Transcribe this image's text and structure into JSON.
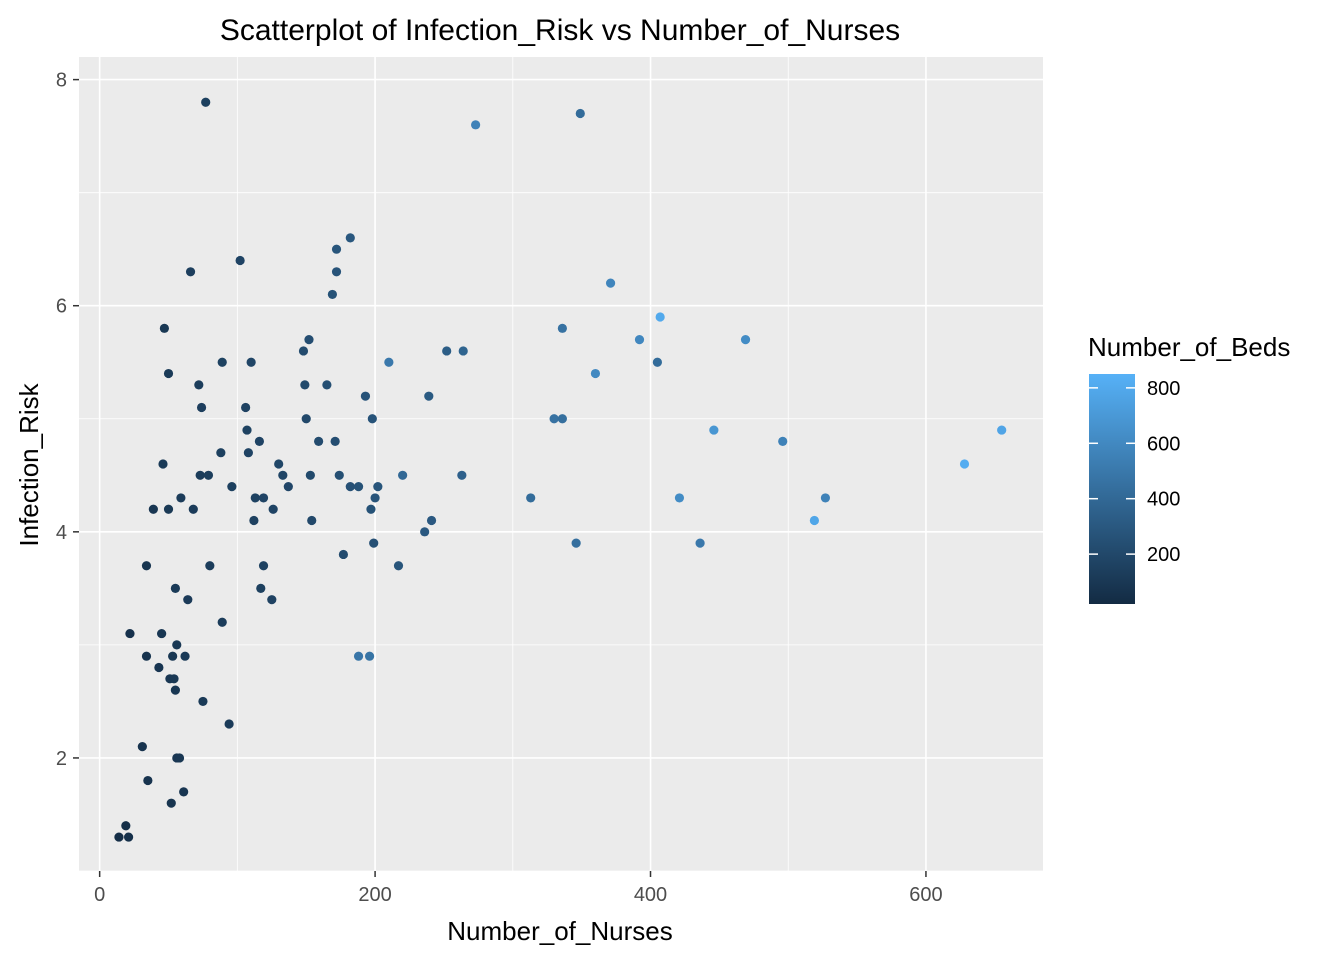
{
  "chart_data": {
    "type": "scatter",
    "title": "Scatterplot of Infection_Risk vs Number_of_Nurses",
    "xlabel": "Number_of_Nurses",
    "ylabel": "Infection_Risk",
    "xlim": [
      -15,
      685
    ],
    "ylim": [
      1.0,
      8.2
    ],
    "x_ticks": [
      0,
      200,
      400,
      600
    ],
    "y_ticks": [
      2,
      4,
      6,
      8
    ],
    "grid": true,
    "panel_background": "#EBEBEB",
    "legend": {
      "title": "Number_of_Beds",
      "placement": "right",
      "ticks": [
        200,
        400,
        600,
        800
      ],
      "range": [
        20,
        850
      ],
      "color_low": "#132B43",
      "color_high": "#56B1F7"
    },
    "points": [
      {
        "x": 14,
        "y": 1.3,
        "beds": 40
      },
      {
        "x": 19,
        "y": 1.4,
        "beds": 45
      },
      {
        "x": 21,
        "y": 1.3,
        "beds": 50
      },
      {
        "x": 22,
        "y": 3.1,
        "beds": 60
      },
      {
        "x": 31,
        "y": 2.1,
        "beds": 70
      },
      {
        "x": 34,
        "y": 3.7,
        "beds": 80
      },
      {
        "x": 34,
        "y": 2.9,
        "beds": 75
      },
      {
        "x": 35,
        "y": 1.8,
        "beds": 70
      },
      {
        "x": 39,
        "y": 4.2,
        "beds": 90
      },
      {
        "x": 43,
        "y": 2.8,
        "beds": 85
      },
      {
        "x": 45,
        "y": 3.1,
        "beds": 95
      },
      {
        "x": 46,
        "y": 4.6,
        "beds": 110
      },
      {
        "x": 47,
        "y": 5.8,
        "beds": 100
      },
      {
        "x": 50,
        "y": 4.2,
        "beds": 105
      },
      {
        "x": 50,
        "y": 5.4,
        "beds": 110
      },
      {
        "x": 51,
        "y": 2.7,
        "beds": 90
      },
      {
        "x": 52,
        "y": 1.6,
        "beds": 80
      },
      {
        "x": 53,
        "y": 2.9,
        "beds": 95
      },
      {
        "x": 54,
        "y": 2.7,
        "beds": 100
      },
      {
        "x": 55,
        "y": 2.6,
        "beds": 95
      },
      {
        "x": 55,
        "y": 3.5,
        "beds": 110
      },
      {
        "x": 56,
        "y": 3.0,
        "beds": 100
      },
      {
        "x": 56,
        "y": 2.0,
        "beds": 90
      },
      {
        "x": 58,
        "y": 2.0,
        "beds": 95
      },
      {
        "x": 59,
        "y": 4.3,
        "beds": 120
      },
      {
        "x": 61,
        "y": 1.7,
        "beds": 85
      },
      {
        "x": 62,
        "y": 2.9,
        "beds": 110
      },
      {
        "x": 64,
        "y": 3.4,
        "beds": 115
      },
      {
        "x": 66,
        "y": 6.3,
        "beds": 140
      },
      {
        "x": 68,
        "y": 4.2,
        "beds": 120
      },
      {
        "x": 72,
        "y": 5.3,
        "beds": 130
      },
      {
        "x": 73,
        "y": 4.5,
        "beds": 125
      },
      {
        "x": 74,
        "y": 5.1,
        "beds": 140
      },
      {
        "x": 75,
        "y": 2.5,
        "beds": 110
      },
      {
        "x": 77,
        "y": 7.8,
        "beds": 150
      },
      {
        "x": 79,
        "y": 4.5,
        "beds": 135
      },
      {
        "x": 80,
        "y": 3.7,
        "beds": 130
      },
      {
        "x": 88,
        "y": 4.7,
        "beds": 150
      },
      {
        "x": 89,
        "y": 3.2,
        "beds": 125
      },
      {
        "x": 89,
        "y": 5.5,
        "beds": 160
      },
      {
        "x": 94,
        "y": 2.3,
        "beds": 120
      },
      {
        "x": 96,
        "y": 4.4,
        "beds": 150
      },
      {
        "x": 102,
        "y": 6.4,
        "beds": 170
      },
      {
        "x": 106,
        "y": 5.1,
        "beds": 165
      },
      {
        "x": 107,
        "y": 4.9,
        "beds": 160
      },
      {
        "x": 108,
        "y": 4.7,
        "beds": 170
      },
      {
        "x": 110,
        "y": 5.5,
        "beds": 180
      },
      {
        "x": 112,
        "y": 4.1,
        "beds": 155
      },
      {
        "x": 113,
        "y": 4.3,
        "beds": 160
      },
      {
        "x": 116,
        "y": 4.8,
        "beds": 170
      },
      {
        "x": 117,
        "y": 3.5,
        "beds": 150
      },
      {
        "x": 119,
        "y": 3.7,
        "beds": 160
      },
      {
        "x": 119,
        "y": 4.3,
        "beds": 175
      },
      {
        "x": 125,
        "y": 3.4,
        "beds": 165
      },
      {
        "x": 126,
        "y": 4.2,
        "beds": 170
      },
      {
        "x": 130,
        "y": 4.6,
        "beds": 185
      },
      {
        "x": 133,
        "y": 4.5,
        "beds": 180
      },
      {
        "x": 137,
        "y": 4.4,
        "beds": 190
      },
      {
        "x": 148,
        "y": 5.6,
        "beds": 220
      },
      {
        "x": 149,
        "y": 5.3,
        "beds": 210
      },
      {
        "x": 150,
        "y": 5.0,
        "beds": 200
      },
      {
        "x": 152,
        "y": 5.7,
        "beds": 230
      },
      {
        "x": 153,
        "y": 4.5,
        "beds": 210
      },
      {
        "x": 154,
        "y": 4.1,
        "beds": 200
      },
      {
        "x": 159,
        "y": 4.8,
        "beds": 220
      },
      {
        "x": 165,
        "y": 5.3,
        "beds": 240
      },
      {
        "x": 169,
        "y": 6.1,
        "beds": 260
      },
      {
        "x": 171,
        "y": 4.8,
        "beds": 230
      },
      {
        "x": 172,
        "y": 6.3,
        "beds": 270
      },
      {
        "x": 172,
        "y": 6.5,
        "beds": 280
      },
      {
        "x": 174,
        "y": 4.5,
        "beds": 240
      },
      {
        "x": 177,
        "y": 3.8,
        "beds": 220
      },
      {
        "x": 182,
        "y": 6.6,
        "beds": 290
      },
      {
        "x": 182,
        "y": 4.4,
        "beds": 250
      },
      {
        "x": 188,
        "y": 4.4,
        "beds": 260
      },
      {
        "x": 188,
        "y": 2.9,
        "beds": 480
      },
      {
        "x": 193,
        "y": 5.2,
        "beds": 270
      },
      {
        "x": 196,
        "y": 2.9,
        "beds": 470
      },
      {
        "x": 197,
        "y": 4.2,
        "beds": 260
      },
      {
        "x": 198,
        "y": 5.0,
        "beds": 270
      },
      {
        "x": 199,
        "y": 3.9,
        "beds": 250
      },
      {
        "x": 200,
        "y": 4.3,
        "beds": 270
      },
      {
        "x": 202,
        "y": 4.4,
        "beds": 280
      },
      {
        "x": 210,
        "y": 5.5,
        "beds": 500
      },
      {
        "x": 217,
        "y": 3.7,
        "beds": 280
      },
      {
        "x": 220,
        "y": 4.5,
        "beds": 400
      },
      {
        "x": 236,
        "y": 4.0,
        "beds": 300
      },
      {
        "x": 239,
        "y": 5.2,
        "beds": 310
      },
      {
        "x": 241,
        "y": 4.1,
        "beds": 300
      },
      {
        "x": 252,
        "y": 5.6,
        "beds": 330
      },
      {
        "x": 263,
        "y": 4.5,
        "beds": 350
      },
      {
        "x": 264,
        "y": 5.6,
        "beds": 370
      },
      {
        "x": 273,
        "y": 7.6,
        "beds": 560
      },
      {
        "x": 313,
        "y": 4.3,
        "beds": 420
      },
      {
        "x": 330,
        "y": 5.0,
        "beds": 460
      },
      {
        "x": 336,
        "y": 5.0,
        "beds": 440
      },
      {
        "x": 336,
        "y": 5.8,
        "beds": 460
      },
      {
        "x": 346,
        "y": 3.9,
        "beds": 440
      },
      {
        "x": 349,
        "y": 7.7,
        "beds": 420
      },
      {
        "x": 360,
        "y": 5.4,
        "beds": 600
      },
      {
        "x": 371,
        "y": 6.2,
        "beds": 580
      },
      {
        "x": 392,
        "y": 5.7,
        "beds": 590
      },
      {
        "x": 405,
        "y": 5.5,
        "beds": 420
      },
      {
        "x": 407,
        "y": 5.9,
        "beds": 800
      },
      {
        "x": 421,
        "y": 4.3,
        "beds": 620
      },
      {
        "x": 436,
        "y": 3.9,
        "beds": 500
      },
      {
        "x": 446,
        "y": 4.9,
        "beds": 680
      },
      {
        "x": 469,
        "y": 5.7,
        "beds": 620
      },
      {
        "x": 496,
        "y": 4.8,
        "beds": 560
      },
      {
        "x": 519,
        "y": 4.1,
        "beds": 780
      },
      {
        "x": 527,
        "y": 4.3,
        "beds": 560
      },
      {
        "x": 628,
        "y": 4.6,
        "beds": 820
      },
      {
        "x": 655,
        "y": 4.9,
        "beds": 770
      }
    ]
  }
}
